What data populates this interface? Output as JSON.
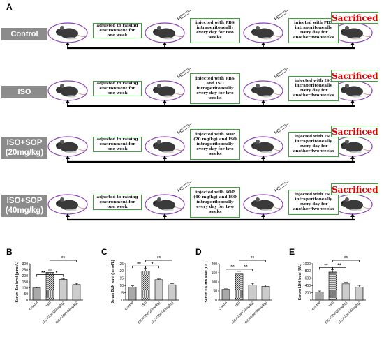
{
  "figure": {
    "panel_a_label": "A",
    "groups": [
      {
        "label": "Control",
        "steps": [
          "adjusted to raising environment for one week",
          "injected with PBS intraperitoneally every day for two weeks",
          "injected with PBS intraperitoneally every day for another two weeks"
        ],
        "end": "Sacrificed"
      },
      {
        "label": "ISO",
        "steps": [
          "adjusted to raising environment for one week",
          "injected with PBS and ISO intraperitoneally every day for two weeks",
          "injected with ISO intraperitoneally every day for another two weeks"
        ],
        "end": "Sacrificed"
      },
      {
        "label": "ISO+SOP\n(20mg/kg)",
        "steps": [
          "adjusted to raising environment for one week",
          "injected with SOP (20 mg/kg) and ISO intraperitoneally every day for two weeks",
          "injected with ISO intraperitoneally every day for another two weeks"
        ],
        "end": "Sacrificed"
      },
      {
        "label": "ISO+SOP\n(40mg/kg)",
        "steps": [
          "adjusted to raising environment for one week",
          "injected with SOP (40 mg/kg) and ISO intraperitoneally every day for two weeks",
          "injected with ISO intraperitoneally every day for another two weeks"
        ],
        "end": "Sacrificed"
      }
    ]
  },
  "chart_data": [
    {
      "panel": "B",
      "type": "bar",
      "ylabel": "Serum Scr level (μmol/L)",
      "ylim": [
        0,
        300
      ],
      "yticks": [
        "0",
        "50",
        "100",
        "150",
        "200",
        "250",
        "300"
      ],
      "categories": [
        "Control",
        "ISO",
        "ISO+SOP(20mg/kg)",
        "ISO+SOP(40mg/kg)"
      ],
      "values": [
        100,
        228,
        170,
        128
      ],
      "errors": [
        8,
        20,
        8,
        10
      ],
      "sig": [
        "**",
        "*",
        "**"
      ]
    },
    {
      "panel": "C",
      "type": "bar",
      "ylabel": "Serum BUN level (mmol/L)",
      "ylim": [
        0,
        25
      ],
      "yticks": [
        "0",
        "5",
        "10",
        "15",
        "20",
        "25"
      ],
      "categories": [
        "Control",
        "ISO",
        "ISO+SOP(20mg/kg)",
        "ISO+SOP(40mg/kg)"
      ],
      "values": [
        8.8,
        20.0,
        14.0,
        10.5
      ],
      "errors": [
        1.0,
        2.0,
        0.5,
        0.8
      ],
      "sig": [
        "**",
        "*",
        "**"
      ]
    },
    {
      "panel": "D",
      "type": "bar",
      "ylabel": "Serum CK-MB level (U/L)",
      "ylim": [
        0,
        200
      ],
      "yticks": [
        "0",
        "50",
        "100",
        "150",
        "200"
      ],
      "categories": [
        "Control",
        "ISO",
        "ISO+SOP(20mg/kg)",
        "ISO+SOP(40mg/kg)"
      ],
      "values": [
        55,
        143,
        82,
        75
      ],
      "errors": [
        7,
        15,
        10,
        8
      ],
      "sig": [
        "**",
        "**",
        "**"
      ]
    },
    {
      "panel": "E",
      "type": "bar",
      "ylabel": "Serum LDH level (U/L)",
      "ylim": [
        0,
        1000
      ],
      "yticks": [
        "0",
        "200",
        "400",
        "600",
        "800",
        "1000"
      ],
      "categories": [
        "Control",
        "ISO",
        "ISO+SOP(20mg/kg)",
        "ISO+SOP(40mg/kg)"
      ],
      "values": [
        225,
        770,
        445,
        355
      ],
      "errors": [
        25,
        70,
        50,
        50
      ],
      "sig": [
        "**",
        "**",
        "**"
      ]
    }
  ]
}
